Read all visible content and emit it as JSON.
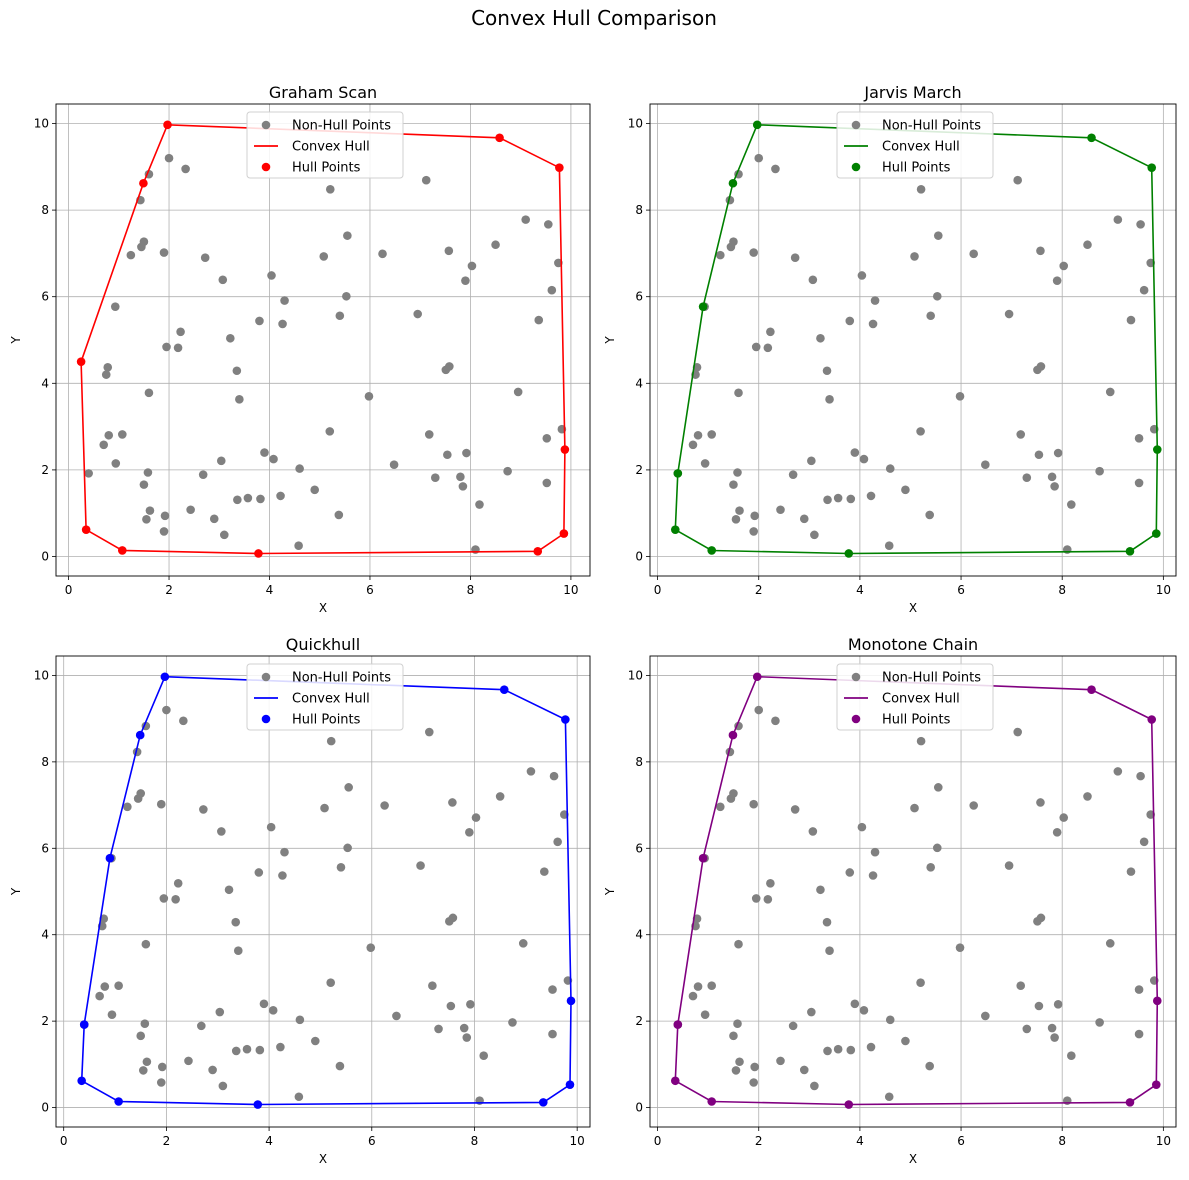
{
  "figure": {
    "title": "Convex Hull Comparison"
  },
  "chart_data": [
    {
      "type": "scatter",
      "title": "Graham Scan",
      "xlabel": "X",
      "ylabel": "Y",
      "xlim": [
        -0.25,
        10.38
      ],
      "ylim": [
        -0.45,
        10.45
      ],
      "xticks": [
        0,
        2,
        4,
        6,
        8,
        10
      ],
      "yticks": [
        0,
        2,
        4,
        6,
        8,
        10
      ],
      "grid": true,
      "legend": "upper center",
      "hull_color": "#ff0000",
      "legend_labels": [
        "Non-Hull Points",
        "Convex Hull",
        "Hull Points"
      ],
      "hull": [
        [
          0.25,
          4.5
        ],
        [
          0.35,
          0.62
        ],
        [
          1.07,
          0.14
        ],
        [
          3.78,
          0.07
        ],
        [
          9.34,
          0.12
        ],
        [
          9.86,
          0.53
        ],
        [
          9.88,
          2.47
        ],
        [
          9.77,
          8.98
        ],
        [
          8.58,
          9.67
        ],
        [
          1.97,
          9.97
        ],
        [
          1.49,
          8.62
        ],
        [
          0.25,
          4.5
        ]
      ],
      "hull_markers": [
        [
          0.25,
          4.5
        ],
        [
          0.35,
          0.62
        ],
        [
          1.07,
          0.14
        ],
        [
          3.78,
          0.07
        ],
        [
          9.34,
          0.12
        ],
        [
          9.86,
          0.53
        ],
        [
          9.88,
          2.47
        ],
        [
          9.77,
          8.98
        ],
        [
          8.58,
          9.67
        ],
        [
          1.97,
          9.97
        ],
        [
          1.49,
          8.62
        ]
      ]
    },
    {
      "type": "scatter",
      "title": "Jarvis March",
      "xlabel": "X",
      "ylabel": "Y",
      "xlim": [
        -0.15,
        10.25
      ],
      "ylim": [
        -0.45,
        10.45
      ],
      "xticks": [
        0,
        2,
        4,
        6,
        8,
        10
      ],
      "yticks": [
        0,
        2,
        4,
        6,
        8,
        10
      ],
      "grid": true,
      "legend": "upper center",
      "hull_color": "#008000",
      "legend_labels": [
        "Non-Hull Points",
        "Convex Hull",
        "Hull Points"
      ],
      "hull": [
        [
          1.97,
          9.97
        ],
        [
          1.49,
          8.62
        ],
        [
          0.9,
          5.77
        ],
        [
          0.4,
          1.92
        ],
        [
          0.35,
          0.62
        ],
        [
          1.07,
          0.14
        ],
        [
          3.78,
          0.07
        ],
        [
          9.34,
          0.12
        ],
        [
          9.86,
          0.53
        ],
        [
          9.88,
          2.47
        ],
        [
          9.77,
          8.98
        ],
        [
          8.58,
          9.67
        ],
        [
          1.97,
          9.97
        ]
      ],
      "hull_markers": [
        [
          1.97,
          9.97
        ],
        [
          1.49,
          8.62
        ],
        [
          0.9,
          5.77
        ],
        [
          0.4,
          1.92
        ],
        [
          0.35,
          0.62
        ],
        [
          1.07,
          0.14
        ],
        [
          3.78,
          0.07
        ],
        [
          9.34,
          0.12
        ],
        [
          9.86,
          0.53
        ],
        [
          9.88,
          2.47
        ],
        [
          9.77,
          8.98
        ],
        [
          8.58,
          9.67
        ]
      ]
    },
    {
      "type": "scatter",
      "title": "Quickhull",
      "xlabel": "X",
      "ylabel": "Y",
      "xlim": [
        -0.15,
        10.25
      ],
      "ylim": [
        -0.45,
        10.45
      ],
      "xticks": [
        0,
        2,
        4,
        6,
        8,
        10
      ],
      "yticks": [
        0,
        2,
        4,
        6,
        8,
        10
      ],
      "grid": true,
      "legend": "upper center",
      "hull_color": "#0000ff",
      "legend_labels": [
        "Non-Hull Points",
        "Convex Hull",
        "Hull Points"
      ],
      "hull": [
        [
          1.97,
          9.97
        ],
        [
          1.49,
          8.62
        ],
        [
          0.9,
          5.77
        ],
        [
          0.4,
          1.92
        ],
        [
          0.35,
          0.62
        ],
        [
          1.07,
          0.14
        ],
        [
          3.78,
          0.07
        ],
        [
          9.34,
          0.12
        ],
        [
          9.86,
          0.53
        ],
        [
          9.88,
          2.47
        ],
        [
          9.77,
          8.98
        ],
        [
          8.58,
          9.67
        ],
        [
          1.97,
          9.97
        ]
      ],
      "hull_markers": [
        [
          1.97,
          9.97
        ],
        [
          1.49,
          8.62
        ],
        [
          0.9,
          5.77
        ],
        [
          0.4,
          1.92
        ],
        [
          0.35,
          0.62
        ],
        [
          1.07,
          0.14
        ],
        [
          3.78,
          0.07
        ],
        [
          9.34,
          0.12
        ],
        [
          9.86,
          0.53
        ],
        [
          9.88,
          2.47
        ],
        [
          9.77,
          8.98
        ],
        [
          8.58,
          9.67
        ]
      ]
    },
    {
      "type": "scatter",
      "title": "Monotone Chain",
      "xlabel": "X",
      "ylabel": "Y",
      "xlim": [
        -0.15,
        10.25
      ],
      "ylim": [
        -0.45,
        10.45
      ],
      "xticks": [
        0,
        2,
        4,
        6,
        8,
        10
      ],
      "yticks": [
        0,
        2,
        4,
        6,
        8,
        10
      ],
      "grid": true,
      "legend": "upper center",
      "hull_color": "#800080",
      "legend_labels": [
        "Non-Hull Points",
        "Convex Hull",
        "Hull Points"
      ],
      "hull": [
        [
          0.35,
          0.62
        ],
        [
          1.07,
          0.14
        ],
        [
          3.78,
          0.07
        ],
        [
          9.34,
          0.12
        ],
        [
          9.86,
          0.53
        ],
        [
          9.88,
          2.47
        ],
        [
          9.77,
          8.98
        ],
        [
          8.58,
          9.67
        ],
        [
          1.97,
          9.97
        ],
        [
          1.49,
          8.62
        ],
        [
          0.9,
          5.77
        ],
        [
          0.4,
          1.92
        ],
        [
          0.35,
          0.62
        ]
      ],
      "hull_markers": [
        [
          0.35,
          0.62
        ],
        [
          1.07,
          0.14
        ],
        [
          3.78,
          0.07
        ],
        [
          9.34,
          0.12
        ],
        [
          9.86,
          0.53
        ],
        [
          9.88,
          2.47
        ],
        [
          9.77,
          8.98
        ],
        [
          8.58,
          9.67
        ],
        [
          1.97,
          9.97
        ],
        [
          1.49,
          8.62
        ],
        [
          0.9,
          5.77
        ],
        [
          0.4,
          1.92
        ]
      ]
    }
  ],
  "non_hull_points": [
    [
      1.6,
      8.83
    ],
    [
      2.0,
      9.2
    ],
    [
      2.33,
      8.95
    ],
    [
      1.43,
      8.23
    ],
    [
      1.45,
      7.15
    ],
    [
      1.5,
      7.27
    ],
    [
      1.24,
      6.96
    ],
    [
      1.9,
      7.02
    ],
    [
      0.93,
      5.77
    ],
    [
      0.78,
      4.37
    ],
    [
      0.75,
      4.2
    ],
    [
      1.95,
      4.84
    ],
    [
      2.23,
      5.19
    ],
    [
      2.18,
      4.82
    ],
    [
      1.6,
      3.78
    ],
    [
      2.72,
      6.9
    ],
    [
      3.07,
      6.39
    ],
    [
      3.22,
      5.04
    ],
    [
      3.8,
      5.44
    ],
    [
      4.04,
      6.49
    ],
    [
      4.3,
      5.91
    ],
    [
      4.26,
      5.37
    ],
    [
      3.35,
      4.29
    ],
    [
      3.4,
      3.63
    ],
    [
      0.8,
      2.8
    ],
    [
      1.07,
      2.82
    ],
    [
      0.94,
      2.15
    ],
    [
      0.7,
      2.58
    ],
    [
      0.4,
      1.92
    ],
    [
      1.5,
      1.66
    ],
    [
      1.58,
      1.94
    ],
    [
      1.62,
      1.06
    ],
    [
      1.55,
      0.86
    ],
    [
      1.92,
      0.94
    ],
    [
      1.9,
      0.58
    ],
    [
      2.43,
      1.08
    ],
    [
      2.68,
      1.89
    ],
    [
      3.04,
      2.21
    ],
    [
      2.9,
      0.87
    ],
    [
      3.1,
      0.5
    ],
    [
      3.36,
      1.31
    ],
    [
      3.57,
      1.35
    ],
    [
      3.82,
      1.33
    ],
    [
      3.9,
      2.4
    ],
    [
      4.08,
      2.25
    ],
    [
      4.22,
      1.4
    ],
    [
      4.6,
      2.03
    ],
    [
      4.9,
      1.54
    ],
    [
      4.58,
      0.25
    ],
    [
      5.38,
      0.96
    ],
    [
      5.2,
      2.89
    ],
    [
      5.21,
      8.48
    ],
    [
      5.55,
      7.41
    ],
    [
      5.08,
      6.93
    ],
    [
      5.4,
      5.56
    ],
    [
      5.53,
      6.01
    ],
    [
      6.25,
      6.99
    ],
    [
      5.98,
      3.7
    ],
    [
      6.48,
      2.12
    ],
    [
      6.95,
      5.6
    ],
    [
      7.12,
      8.69
    ],
    [
      7.57,
      7.06
    ],
    [
      8.5,
      7.2
    ],
    [
      9.1,
      7.78
    ],
    [
      9.55,
      7.67
    ],
    [
      9.75,
      6.78
    ],
    [
      9.62,
      6.15
    ],
    [
      9.36,
      5.46
    ],
    [
      8.03,
      6.71
    ],
    [
      7.9,
      6.37
    ],
    [
      7.58,
      4.39
    ],
    [
      7.51,
      4.31
    ],
    [
      8.95,
      3.8
    ],
    [
      9.52,
      2.73
    ],
    [
      9.82,
      2.94
    ],
    [
      9.52,
      1.7
    ],
    [
      7.18,
      2.82
    ],
    [
      7.54,
      2.35
    ],
    [
      7.92,
      2.39
    ],
    [
      7.8,
      1.84
    ],
    [
      7.85,
      1.62
    ],
    [
      7.3,
      1.82
    ],
    [
      8.74,
      1.97
    ],
    [
      8.18,
      1.2
    ],
    [
      8.1,
      0.16
    ]
  ]
}
